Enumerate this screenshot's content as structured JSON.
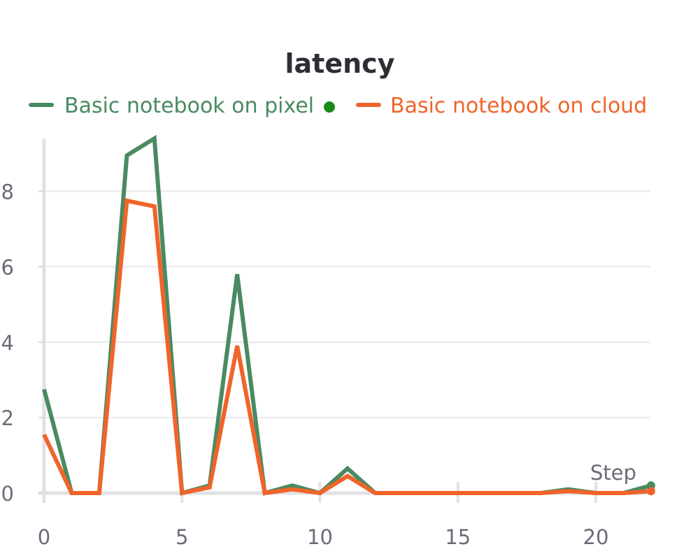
{
  "chart_data": {
    "type": "line",
    "title": "latency",
    "xlabel": "Step",
    "ylabel": "",
    "xlim": [
      0,
      22
    ],
    "ylim": [
      0,
      9.4
    ],
    "x_ticks": [
      0,
      5,
      10,
      15,
      20
    ],
    "y_ticks": [
      0,
      2,
      4,
      6,
      8
    ],
    "x_tick_labels": [
      "0",
      "5",
      "10",
      "15",
      "20"
    ],
    "y_tick_labels": [
      "0",
      "2",
      "4",
      "6",
      "8"
    ],
    "grid": true,
    "legend_position": "top",
    "x": [
      0,
      1,
      2,
      3,
      4,
      5,
      6,
      7,
      8,
      9,
      10,
      11,
      12,
      13,
      14,
      15,
      16,
      17,
      18,
      19,
      20,
      21,
      22
    ],
    "series": [
      {
        "name": "Basic notebook on pixel",
        "color": "#4a8a62",
        "values": [
          2.75,
          0,
          0,
          8.95,
          9.4,
          0,
          0.2,
          5.8,
          0,
          0.2,
          0,
          0.65,
          0,
          0,
          0,
          0,
          0,
          0,
          0,
          0.1,
          0,
          0,
          0.2
        ]
      },
      {
        "name": "Basic notebook on cloud",
        "color": "#f0642a",
        "values": [
          1.55,
          0,
          0,
          7.75,
          7.6,
          0,
          0.15,
          3.9,
          0,
          0.1,
          0,
          0.45,
          0,
          0,
          0,
          0,
          0,
          0,
          0,
          0.05,
          0,
          0,
          0.05
        ]
      }
    ],
    "legend_marker_color": "#1a8a1a"
  }
}
